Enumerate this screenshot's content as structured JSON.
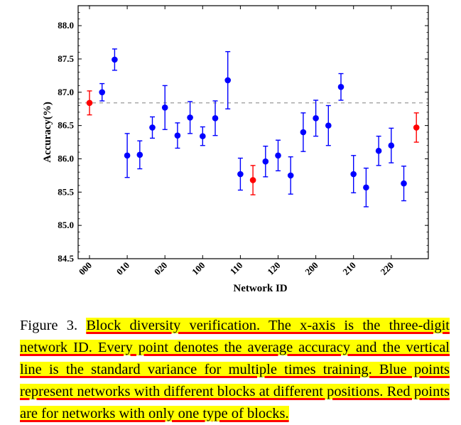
{
  "chart_data": {
    "type": "scatter",
    "xlabel": "Network ID",
    "ylabel": "Accuracy(%)",
    "ylim": [
      84.5,
      88.3
    ],
    "yticks": [
      "84.5",
      "85.0",
      "85.5",
      "86.0",
      "86.5",
      "87.0",
      "87.5",
      "88.0"
    ],
    "xtick_labels": [
      "000",
      "010",
      "020",
      "100",
      "110",
      "120",
      "200",
      "210",
      "220"
    ],
    "reference_line": 86.84,
    "colors": {
      "blue": "#0000ff",
      "red": "#ff0000",
      "reference": "#999999"
    },
    "points": [
      {
        "x": "000",
        "y": 86.84,
        "err": 0.18,
        "color": "red"
      },
      {
        "x": "001",
        "y": 87.0,
        "err": 0.13,
        "color": "blue"
      },
      {
        "x": "002",
        "y": 87.49,
        "err": 0.16,
        "color": "blue"
      },
      {
        "x": "010",
        "y": 86.05,
        "err": 0.33,
        "color": "blue"
      },
      {
        "x": "011",
        "y": 86.06,
        "err": 0.21,
        "color": "blue"
      },
      {
        "x": "012",
        "y": 86.47,
        "err": 0.16,
        "color": "blue"
      },
      {
        "x": "020",
        "y": 86.77,
        "err": 0.33,
        "color": "blue"
      },
      {
        "x": "021",
        "y": 86.35,
        "err": 0.19,
        "color": "blue"
      },
      {
        "x": "022",
        "y": 86.62,
        "err": 0.24,
        "color": "blue"
      },
      {
        "x": "100",
        "y": 86.34,
        "err": 0.14,
        "color": "blue"
      },
      {
        "x": "101",
        "y": 86.61,
        "err": 0.26,
        "color": "blue"
      },
      {
        "x": "102",
        "y": 87.18,
        "err": 0.43,
        "color": "blue"
      },
      {
        "x": "110",
        "y": 85.77,
        "err": 0.24,
        "color": "blue"
      },
      {
        "x": "111",
        "y": 85.68,
        "err": 0.22,
        "color": "red"
      },
      {
        "x": "112",
        "y": 85.96,
        "err": 0.23,
        "color": "blue"
      },
      {
        "x": "120",
        "y": 86.05,
        "err": 0.23,
        "color": "blue"
      },
      {
        "x": "121",
        "y": 85.75,
        "err": 0.28,
        "color": "blue"
      },
      {
        "x": "122",
        "y": 86.4,
        "err": 0.29,
        "color": "blue"
      },
      {
        "x": "200",
        "y": 86.61,
        "err": 0.27,
        "color": "blue"
      },
      {
        "x": "201",
        "y": 86.5,
        "err": 0.3,
        "color": "blue"
      },
      {
        "x": "202",
        "y": 87.08,
        "err": 0.2,
        "color": "blue"
      },
      {
        "x": "210",
        "y": 85.77,
        "err": 0.28,
        "color": "blue"
      },
      {
        "x": "211",
        "y": 85.57,
        "err": 0.29,
        "color": "blue"
      },
      {
        "x": "212",
        "y": 86.12,
        "err": 0.22,
        "color": "blue"
      },
      {
        "x": "220",
        "y": 86.2,
        "err": 0.26,
        "color": "blue"
      },
      {
        "x": "221",
        "y": 85.63,
        "err": 0.26,
        "color": "blue"
      },
      {
        "x": "222",
        "y": 86.47,
        "err": 0.22,
        "color": "red"
      }
    ]
  },
  "caption": {
    "prefix": "Figure 3. ",
    "text": "Block diversity verification. The x-axis is the three-digit network ID. Every point denotes the average accuracy and the vertical line is the standard variance for multiple times training. Blue points represent networks with different blocks at different positions. Red points are for networks with only one type of blocks."
  }
}
